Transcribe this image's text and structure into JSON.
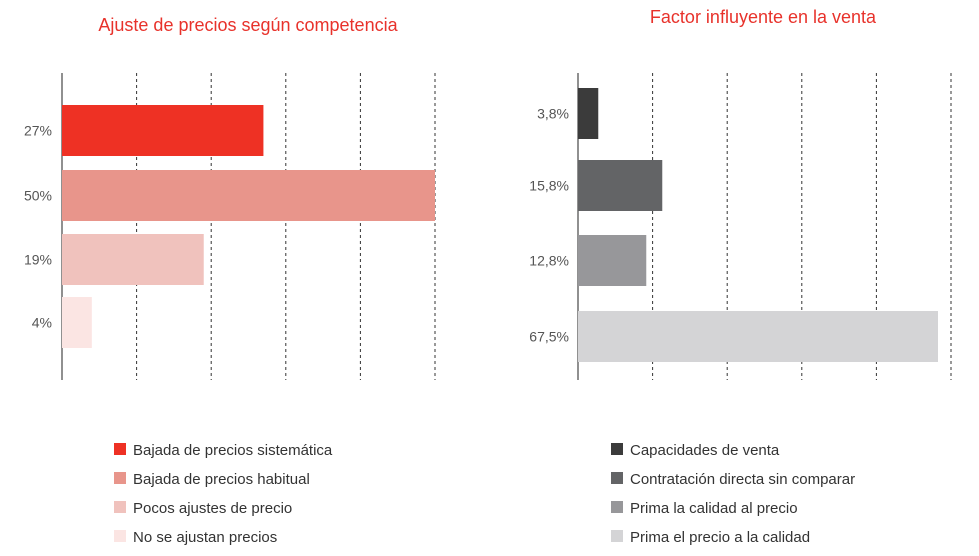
{
  "chart_data": [
    {
      "type": "bar",
      "orientation": "horizontal",
      "title": "Ajuste de precios según competencia",
      "categories": [
        "27%",
        "50%",
        "19%",
        "4%"
      ],
      "values": [
        27,
        50,
        19,
        4
      ],
      "xlim": [
        0,
        50
      ],
      "grid": "dashed-vertical",
      "colors": [
        "#ee3124",
        "#e8958b",
        "#f0c2bd",
        "#fbe5e3"
      ],
      "legend": [
        "Bajada de precios sistemática",
        "Bajada de precios habitual",
        "Pocos ajustes de precio",
        "No se ajustan precios"
      ],
      "legend_placement": "bottom"
    },
    {
      "type": "bar",
      "orientation": "horizontal",
      "title": "Factor influyente en la venta",
      "categories": [
        "3,8%",
        "15,8%",
        "12,8%",
        "67,5%"
      ],
      "values": [
        3.8,
        15.8,
        12.8,
        67.5
      ],
      "xlim": [
        0,
        67.5
      ],
      "grid": "dashed-vertical",
      "colors": [
        "#3b3b3b",
        "#636466",
        "#97979a",
        "#d4d4d6"
      ],
      "legend": [
        "Capacidades de venta",
        "Contratación directa sin comparar",
        "Prima la calidad al precio",
        "Prima el precio a la calidad"
      ],
      "legend_placement": "bottom"
    }
  ]
}
